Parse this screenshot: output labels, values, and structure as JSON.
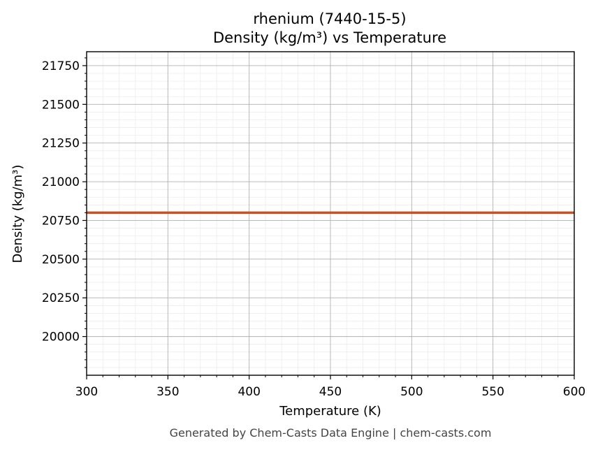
{
  "chart_data": {
    "type": "line",
    "title_line1": "rhenium (7440-15-5)",
    "title_line2": "Density (kg/m³) vs Temperature",
    "xlabel": "Temperature (K)",
    "ylabel": "Density (kg/m³)",
    "xlim": [
      300,
      600
    ],
    "ylim": [
      19750,
      21840
    ],
    "x_ticks": [
      300,
      350,
      400,
      450,
      500,
      550,
      600
    ],
    "y_ticks": [
      20000,
      20250,
      20500,
      20750,
      21000,
      21250,
      21500,
      21750
    ],
    "grid": true,
    "series": [
      {
        "color": "#c4512a",
        "x": [
          300,
          350,
          400,
          450,
          500,
          550,
          600
        ],
        "y": [
          20800,
          20800,
          20800,
          20800,
          20800,
          20800,
          20800
        ]
      }
    ]
  },
  "footer": "Generated by Chem-Casts Data Engine | chem-casts.com"
}
